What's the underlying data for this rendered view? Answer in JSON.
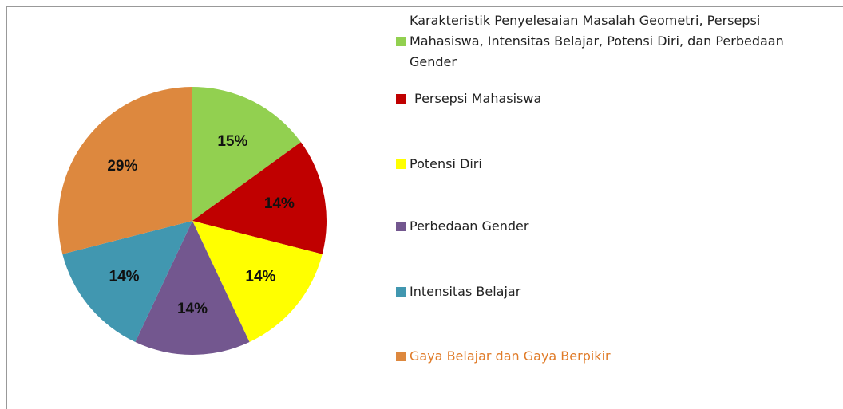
{
  "chart_data": {
    "type": "pie",
    "categories": [
      "Karakteristik Penyelesaian Masalah Geometri, Persepsi Mahasiswa, Intensitas Belajar, Potensi Diri, dan Perbedaan Gender",
      "Persepsi Mahasiswa",
      "Potensi Diri",
      "Perbedaan Gender",
      "Intensitas Belajar",
      "Gaya Belajar dan Gaya Berpikir"
    ],
    "values": [
      15,
      14,
      14,
      14,
      14,
      29
    ],
    "value_labels": [
      "15%",
      "14%",
      "14%",
      "14%",
      "14%",
      "29%"
    ],
    "colors": [
      "#92d050",
      "#c00000",
      "#ffff00",
      "#73578f",
      "#4197b0",
      "#dd883e"
    ],
    "legend": "right"
  }
}
